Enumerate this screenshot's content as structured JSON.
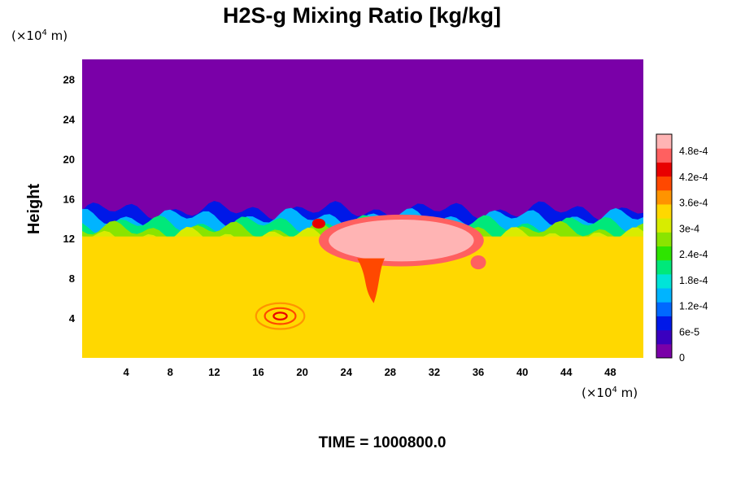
{
  "chart_data": {
    "type": "heatmap",
    "title": "H2S-g Mixing Ratio [kg/kg]",
    "xlabel": "",
    "ylabel": "Height",
    "x_unit_prefix": "(×10",
    "x_unit_exp": "4",
    "x_unit_suffix": " m)",
    "y_unit_prefix": "(×10",
    "y_unit_exp": "4",
    "y_unit_suffix": " m)",
    "xlim": [
      0,
      51
    ],
    "ylim": [
      0,
      30
    ],
    "x_ticks": [
      4,
      8,
      12,
      16,
      20,
      24,
      28,
      32,
      36,
      40,
      44,
      48
    ],
    "y_ticks": [
      4,
      8,
      12,
      16,
      20,
      24,
      28
    ],
    "time_label": "TIME = 1000800.0",
    "colorbar": {
      "tick_labels": [
        "0",
        "6e-5",
        "1.2e-4",
        "1.8e-4",
        "2.4e-4",
        "3e-4",
        "3.6e-4",
        "4.2e-4",
        "4.8e-4"
      ],
      "tick_values": [
        0,
        6e-05,
        0.00012,
        0.00018,
        0.00024,
        0.0003,
        0.00036,
        0.00042,
        0.00048
      ],
      "max": 0.00052,
      "colors": [
        "#7a00a8",
        "#3a00bf",
        "#0018e8",
        "#0068ff",
        "#00b4ff",
        "#00e4d8",
        "#00e87a",
        "#2ee400",
        "#8ae400",
        "#d8ec00",
        "#ffd800",
        "#ff9400",
        "#ff4800",
        "#e80000",
        "#ff6060",
        "#ffb4b4"
      ]
    },
    "field": {
      "top_value": 0,
      "lower_value": 0.00033,
      "interface_height": 12.2,
      "plume_center": [
        29,
        11.5
      ],
      "plume_max": 0.00052,
      "vortex_center": [
        18,
        4.2
      ]
    }
  }
}
